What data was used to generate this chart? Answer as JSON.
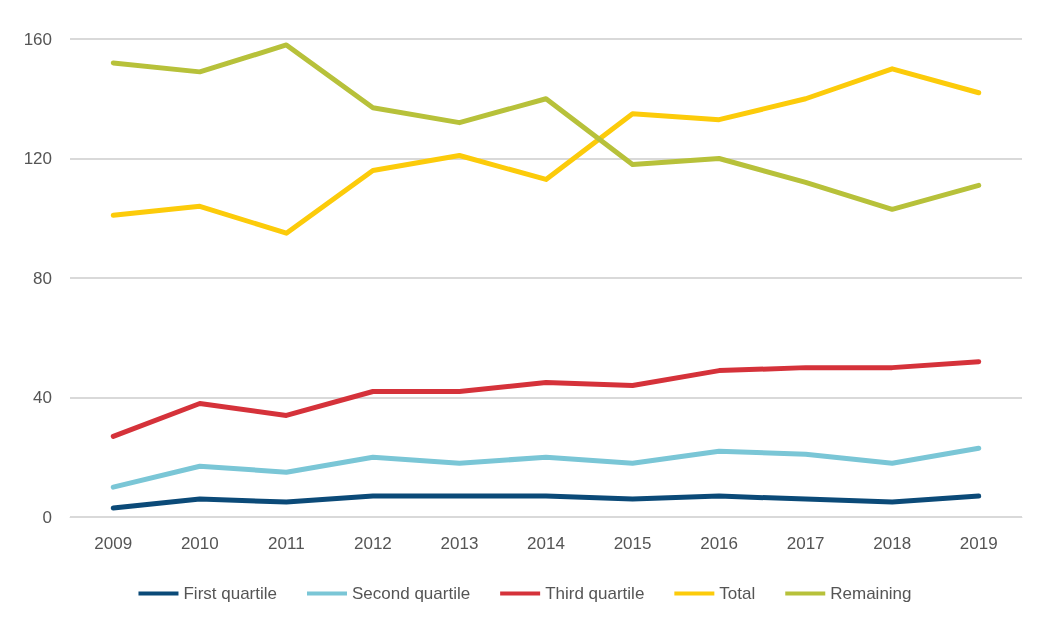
{
  "chart_data": {
    "type": "line",
    "categories": [
      "2009",
      "2010",
      "2011",
      "2012",
      "2013",
      "2014",
      "2015",
      "2016",
      "2017",
      "2018",
      "2019"
    ],
    "series": [
      {
        "name": "First quartile",
        "color": "#0b4a78",
        "values": [
          3,
          6,
          5,
          7,
          7,
          7,
          6,
          7,
          6,
          5,
          7
        ]
      },
      {
        "name": "Second quartile",
        "color": "#7ac6d6",
        "values": [
          10,
          17,
          15,
          20,
          18,
          20,
          18,
          22,
          21,
          18,
          23
        ]
      },
      {
        "name": "Third quartile",
        "color": "#d5323a",
        "values": [
          27,
          38,
          34,
          42,
          42,
          45,
          44,
          49,
          50,
          50,
          52
        ]
      },
      {
        "name": "Total",
        "color": "#fccb0a",
        "values": [
          101,
          104,
          95,
          116,
          121,
          113,
          135,
          133,
          140,
          150,
          142
        ]
      },
      {
        "name": "Remaining",
        "color": "#b7c13a",
        "values": [
          152,
          149,
          158,
          137,
          132,
          140,
          118,
          120,
          112,
          103,
          111
        ]
      }
    ],
    "ylim": [
      0,
      160
    ],
    "yticks": [
      0,
      40,
      80,
      120,
      160
    ],
    "grid": "y",
    "legend": "bottom",
    "marker": "none",
    "line_style": "solid"
  }
}
